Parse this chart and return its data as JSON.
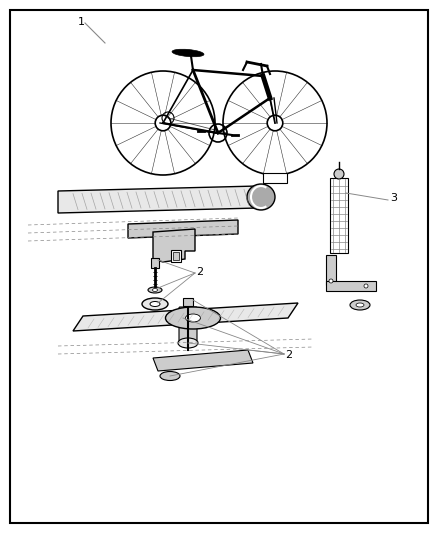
{
  "background_color": "#ffffff",
  "border_color": "#000000",
  "border_linewidth": 1.5,
  "label_1": "1",
  "label_2": "2",
  "label_3": "3",
  "label_fontsize": 8,
  "line_color": "#000000",
  "gray1": "#888888",
  "gray2": "#aaaaaa",
  "gray3": "#cccccc",
  "gray4": "#e8e8e8",
  "gray5": "#444444"
}
